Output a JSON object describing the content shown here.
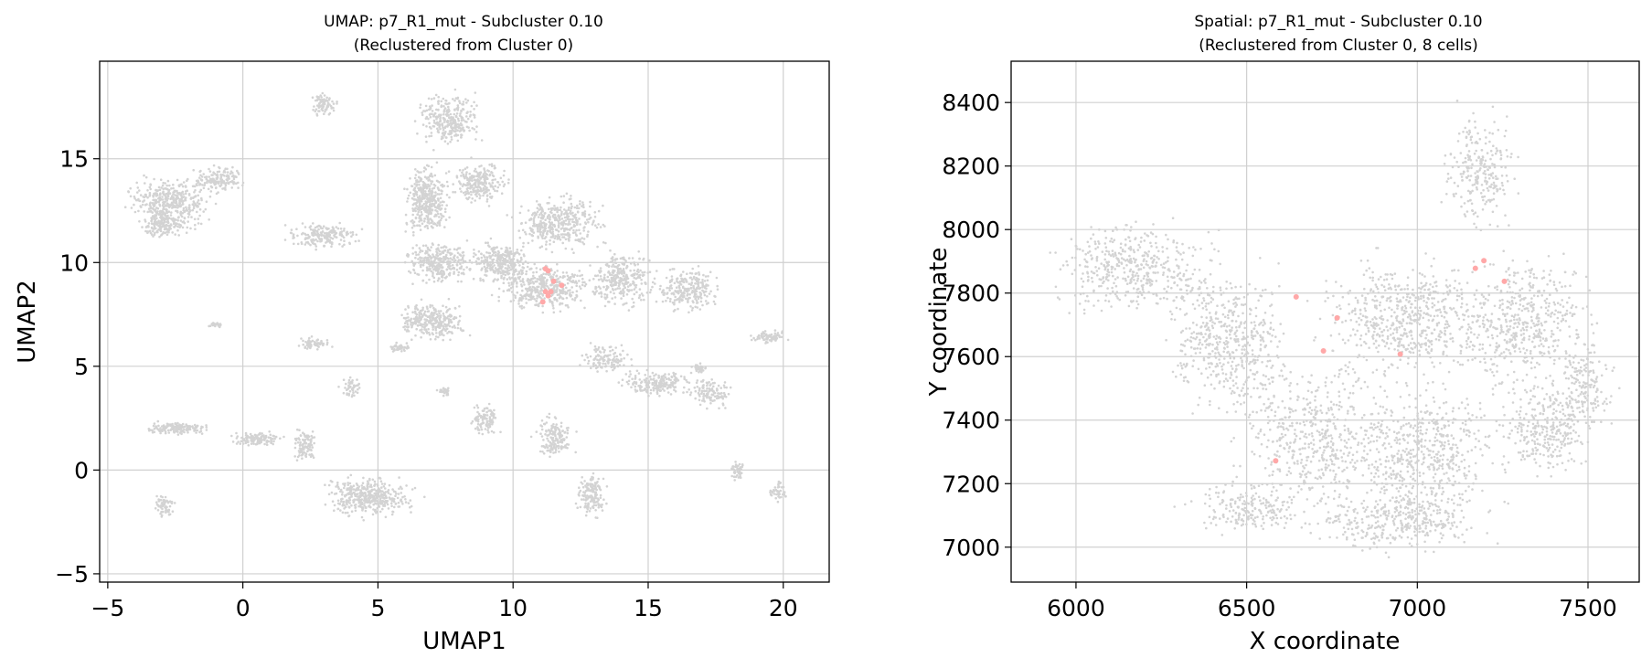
{
  "chart_data": [
    {
      "type": "scatter",
      "title": "UMAP: p7_R1_mut - Subcluster 0.10",
      "subtitle": "(Reclustered from Cluster 0)",
      "xlabel": "UMAP1",
      "ylabel": "UMAP2",
      "xlim": [
        -5.3,
        21.7
      ],
      "ylim": [
        -5.4,
        19.7
      ],
      "xticks": [
        -5,
        0,
        5,
        10,
        15,
        20
      ],
      "yticks": [
        -5,
        0,
        5,
        10,
        15
      ],
      "grid": true,
      "background_color": "#d3d3d3",
      "highlight_color": "#ffa8a8",
      "background_regions": [
        {
          "x": -2.7,
          "y": 12.9,
          "rx": 1.9,
          "ry": 1.5,
          "n": 400
        },
        {
          "x": -3.0,
          "y": 11.8,
          "rx": 1.1,
          "ry": 0.9,
          "n": 150
        },
        {
          "x": -0.9,
          "y": 14.0,
          "rx": 1.1,
          "ry": 0.8,
          "n": 150
        },
        {
          "x": 3.0,
          "y": 11.3,
          "rx": 1.7,
          "ry": 0.8,
          "n": 200
        },
        {
          "x": 3.0,
          "y": 17.6,
          "rx": 0.6,
          "ry": 0.7,
          "n": 80
        },
        {
          "x": 6.8,
          "y": 13.0,
          "rx": 1.0,
          "ry": 2.1,
          "n": 400
        },
        {
          "x": 7.3,
          "y": 10.0,
          "rx": 1.6,
          "ry": 1.3,
          "n": 300
        },
        {
          "x": 7.0,
          "y": 7.2,
          "rx": 1.6,
          "ry": 1.2,
          "n": 300
        },
        {
          "x": 7.6,
          "y": 16.9,
          "rx": 1.4,
          "ry": 1.6,
          "n": 300
        },
        {
          "x": 8.8,
          "y": 13.8,
          "rx": 1.2,
          "ry": 1.3,
          "n": 250
        },
        {
          "x": 9.6,
          "y": 10.0,
          "rx": 1.4,
          "ry": 1.2,
          "n": 300
        },
        {
          "x": 11.7,
          "y": 11.9,
          "rx": 2.1,
          "ry": 1.6,
          "n": 400
        },
        {
          "x": 11.2,
          "y": 8.8,
          "rx": 2.3,
          "ry": 1.4,
          "n": 400
        },
        {
          "x": 14.0,
          "y": 9.2,
          "rx": 1.5,
          "ry": 1.6,
          "n": 300
        },
        {
          "x": 16.5,
          "y": 8.7,
          "rx": 1.4,
          "ry": 1.4,
          "n": 250
        },
        {
          "x": 15.3,
          "y": 4.2,
          "rx": 1.7,
          "ry": 0.8,
          "n": 200
        },
        {
          "x": 17.3,
          "y": 3.8,
          "rx": 1.0,
          "ry": 1.1,
          "n": 120
        },
        {
          "x": 19.5,
          "y": 6.4,
          "rx": 0.9,
          "ry": 0.4,
          "n": 80
        },
        {
          "x": 13.5,
          "y": 5.4,
          "rx": 1.2,
          "ry": 0.8,
          "n": 120
        },
        {
          "x": 11.5,
          "y": 1.5,
          "rx": 0.9,
          "ry": 1.4,
          "n": 150
        },
        {
          "x": 9.0,
          "y": 2.4,
          "rx": 0.6,
          "ry": 1.0,
          "n": 100
        },
        {
          "x": 12.9,
          "y": -1.2,
          "rx": 0.7,
          "ry": 1.4,
          "n": 150
        },
        {
          "x": 4.7,
          "y": -1.3,
          "rx": 2.2,
          "ry": 1.2,
          "n": 400
        },
        {
          "x": -2.4,
          "y": 2.0,
          "rx": 1.4,
          "ry": 0.4,
          "n": 150
        },
        {
          "x": 0.5,
          "y": 1.5,
          "rx": 1.2,
          "ry": 0.4,
          "n": 120
        },
        {
          "x": 2.3,
          "y": 1.2,
          "rx": 0.6,
          "ry": 0.9,
          "n": 100
        },
        {
          "x": -2.9,
          "y": -1.7,
          "rx": 0.5,
          "ry": 0.8,
          "n": 60
        },
        {
          "x": 2.6,
          "y": 6.1,
          "rx": 0.8,
          "ry": 0.4,
          "n": 60
        },
        {
          "x": 4.0,
          "y": 4.0,
          "rx": 0.5,
          "ry": 0.7,
          "n": 50
        },
        {
          "x": 18.3,
          "y": 0.0,
          "rx": 0.3,
          "ry": 0.7,
          "n": 40
        },
        {
          "x": 19.8,
          "y": -1.0,
          "rx": 0.4,
          "ry": 0.6,
          "n": 40
        },
        {
          "x": 5.8,
          "y": 5.9,
          "rx": 0.5,
          "ry": 0.3,
          "n": 40
        },
        {
          "x": 7.5,
          "y": 3.8,
          "rx": 0.4,
          "ry": 0.3,
          "n": 30
        },
        {
          "x": -1.0,
          "y": 7.0,
          "rx": 0.4,
          "ry": 0.2,
          "n": 25
        },
        {
          "x": 16.9,
          "y": 4.9,
          "rx": 0.4,
          "ry": 0.3,
          "n": 30
        }
      ],
      "highlight_points": [
        {
          "x": 11.2,
          "y": 9.7
        },
        {
          "x": 11.2,
          "y": 8.6
        },
        {
          "x": 11.4,
          "y": 8.6
        },
        {
          "x": 11.5,
          "y": 9.1
        },
        {
          "x": 11.8,
          "y": 8.9
        },
        {
          "x": 11.3,
          "y": 8.4
        },
        {
          "x": 11.1,
          "y": 8.1
        },
        {
          "x": 11.3,
          "y": 9.6
        }
      ]
    },
    {
      "type": "scatter",
      "title": "Spatial: p7_R1_mut - Subcluster 0.10",
      "subtitle": "(Reclustered from Cluster 0, 8 cells)",
      "xlabel": "X coordinate",
      "ylabel": "Y coordinate",
      "xlim": [
        5810,
        7650
      ],
      "ylim": [
        6890,
        8530
      ],
      "xticks": [
        6000,
        6500,
        7000,
        7500
      ],
      "yticks": [
        7000,
        7200,
        7400,
        7600,
        7800,
        8000,
        8200,
        8400
      ],
      "grid": true,
      "background_color": "#d3d3d3",
      "highlight_color": "#ffa8a8",
      "background_regions": [
        {
          "x": 6170,
          "y": 7880,
          "rx": 300,
          "ry": 180,
          "n": 450
        },
        {
          "x": 6450,
          "y": 7650,
          "rx": 230,
          "ry": 300,
          "n": 500
        },
        {
          "x": 6700,
          "y": 7350,
          "rx": 280,
          "ry": 300,
          "n": 500
        },
        {
          "x": 6980,
          "y": 7720,
          "rx": 330,
          "ry": 230,
          "n": 600
        },
        {
          "x": 7020,
          "y": 7300,
          "rx": 300,
          "ry": 270,
          "n": 550
        },
        {
          "x": 7320,
          "y": 7700,
          "rx": 250,
          "ry": 270,
          "n": 500
        },
        {
          "x": 7380,
          "y": 7380,
          "rx": 170,
          "ry": 200,
          "n": 300
        },
        {
          "x": 7190,
          "y": 8190,
          "rx": 140,
          "ry": 240,
          "n": 250
        },
        {
          "x": 6500,
          "y": 7120,
          "rx": 230,
          "ry": 100,
          "n": 200
        },
        {
          "x": 6950,
          "y": 7080,
          "rx": 320,
          "ry": 120,
          "n": 350
        },
        {
          "x": 7500,
          "y": 7500,
          "rx": 100,
          "ry": 180,
          "n": 150
        }
      ],
      "highlight_points": [
        {
          "x": 6645,
          "y": 7788
        },
        {
          "x": 6765,
          "y": 7722
        },
        {
          "x": 6725,
          "y": 7618
        },
        {
          "x": 6950,
          "y": 7608
        },
        {
          "x": 7170,
          "y": 7878
        },
        {
          "x": 7195,
          "y": 7902
        },
        {
          "x": 7255,
          "y": 7837
        },
        {
          "x": 6585,
          "y": 7272
        }
      ]
    }
  ]
}
